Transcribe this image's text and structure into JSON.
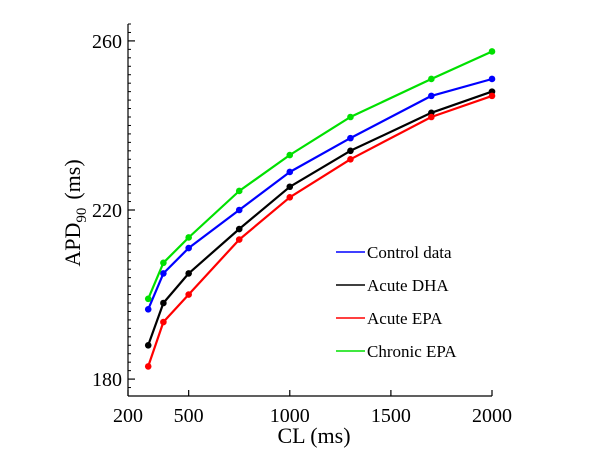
{
  "chart_data": {
    "type": "line",
    "title": "",
    "xlabel": "CL (ms)",
    "ylabel_main": "APD",
    "ylabel_sub": "90",
    "ylabel_unit": "(ms)",
    "xlim": [
      200,
      2000
    ],
    "ylim": [
      176,
      264
    ],
    "xticks": [
      200,
      500,
      1000,
      1500,
      2000
    ],
    "xtick_labels": [
      "200",
      "500",
      "1000",
      "1500",
      "2000"
    ],
    "yticks": [
      180,
      220,
      260
    ],
    "ytick_labels": [
      "180",
      "220",
      "260"
    ],
    "y_minor_step": 2,
    "grid": false,
    "legend_position": "lower-right",
    "x": [
      300,
      375,
      500,
      750,
      1000,
      1300,
      1700,
      2000
    ],
    "series": [
      {
        "name": "Control data",
        "color": "#0000ff",
        "values": [
          196.5,
          205,
          211,
          220,
          229,
          237,
          247,
          251
        ]
      },
      {
        "name": "Acute DHA",
        "color": "#000000",
        "values": [
          188,
          198,
          205,
          215.5,
          225.5,
          234,
          243,
          248
        ]
      },
      {
        "name": "Acute EPA",
        "color": "#ff0000",
        "values": [
          183,
          193.5,
          200,
          213,
          223,
          232,
          242,
          247
        ]
      },
      {
        "name": "Chronic EPA",
        "color": "#00e000",
        "values": [
          199,
          207.5,
          213.5,
          224.5,
          233,
          242,
          251,
          257.5
        ]
      }
    ]
  }
}
